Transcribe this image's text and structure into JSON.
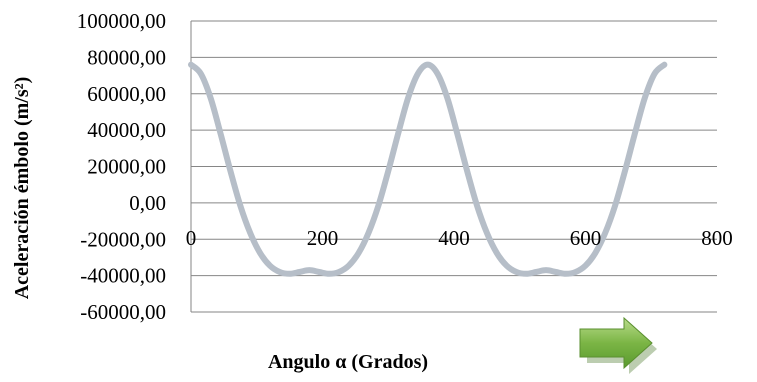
{
  "chart_data": {
    "type": "line",
    "xlabel": "Angulo α  (Grados)",
    "ylabel": "Aceleración émbolo (m/s²)",
    "xlim": [
      0,
      800
    ],
    "ylim": [
      -60000,
      100000
    ],
    "x_ticks": [
      0,
      200,
      400,
      600,
      800
    ],
    "y_ticks": [
      100000,
      80000,
      60000,
      40000,
      20000,
      0,
      -20000,
      -40000,
      -60000
    ],
    "x_tick_labels": [
      "0",
      "200",
      "400",
      "600",
      "800"
    ],
    "y_tick_labels": [
      "100000,00",
      "80000,00",
      "60000,00",
      "40000,00",
      "20000,00",
      "0,00",
      "-20000,00",
      "-40000,00",
      "-60000,00"
    ],
    "grid": "horizontal",
    "legend": "none",
    "series_color": "#b6bec8",
    "series": [
      {
        "x": [
          0,
          15,
          30,
          45,
          60,
          75,
          90,
          105,
          120,
          135,
          150,
          165,
          180,
          195,
          210,
          225,
          240,
          255,
          270,
          285,
          300,
          315,
          330,
          345,
          360,
          375,
          390,
          405,
          420,
          435,
          450,
          465,
          480,
          495,
          510,
          525,
          540,
          555,
          570,
          585,
          600,
          615,
          630,
          645,
          660,
          675,
          690,
          705,
          720
        ],
        "y": [
          76000,
          71000,
          57500,
          38000,
          17500,
          -1500,
          -16500,
          -27500,
          -34500,
          -38000,
          -39000,
          -38000,
          -37000,
          -38000,
          -39000,
          -38000,
          -34500,
          -27500,
          -16500,
          -1500,
          17500,
          38000,
          57500,
          71000,
          76000,
          71000,
          57500,
          38000,
          17500,
          -1500,
          -16500,
          -27500,
          -34500,
          -38000,
          -39000,
          -38000,
          -37000,
          -38000,
          -39000,
          -38000,
          -34500,
          -27500,
          -16500,
          -1500,
          17500,
          38000,
          57500,
          71000,
          76000
        ]
      }
    ]
  },
  "decor": {
    "arrow_icon": "right-arrow-icon",
    "arrow_color": "#70ad47"
  }
}
